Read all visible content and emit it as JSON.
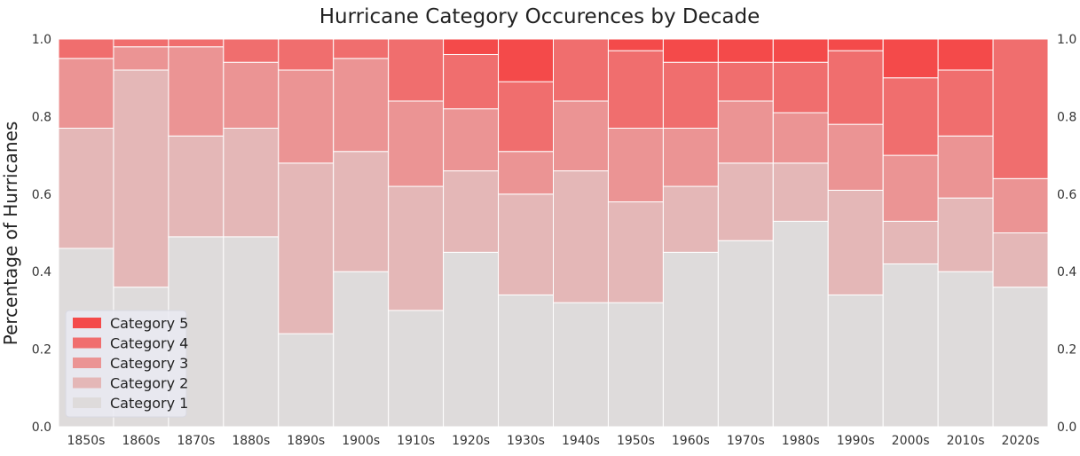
{
  "chart_data": {
    "type": "bar",
    "stacked": true,
    "normalized": true,
    "title": "Hurricane Category Occurences by Decade",
    "ylabel": "Percentage of Hurricanes",
    "xlabel": "",
    "ylim": [
      0,
      1
    ],
    "yticks": [
      "0.0",
      "0.2",
      "0.4",
      "0.6",
      "0.8",
      "1.0"
    ],
    "yticks_right": true,
    "grid": false,
    "legend_position": "bottom-left",
    "plot_background": "#eaeaf2",
    "categories": [
      "1850s",
      "1860s",
      "1870s",
      "1880s",
      "1890s",
      "1900s",
      "1910s",
      "1920s",
      "1930s",
      "1940s",
      "1950s",
      "1960s",
      "1970s",
      "1980s",
      "1990s",
      "2000s",
      "2010s",
      "2020s"
    ],
    "series": [
      {
        "name": "Category 1",
        "color": "#dedbdb",
        "values": [
          0.46,
          0.36,
          0.49,
          0.49,
          0.24,
          0.4,
          0.3,
          0.45,
          0.34,
          0.32,
          0.32,
          0.45,
          0.48,
          0.53,
          0.34,
          0.42,
          0.4,
          0.36
        ]
      },
      {
        "name": "Category 2",
        "color": "#e4b7b7",
        "values": [
          0.31,
          0.56,
          0.26,
          0.28,
          0.44,
          0.31,
          0.32,
          0.21,
          0.26,
          0.34,
          0.26,
          0.17,
          0.2,
          0.15,
          0.27,
          0.11,
          0.19,
          0.14
        ]
      },
      {
        "name": "Category 3",
        "color": "#eb9494",
        "values": [
          0.18,
          0.06,
          0.23,
          0.17,
          0.24,
          0.24,
          0.22,
          0.16,
          0.11,
          0.18,
          0.19,
          0.15,
          0.16,
          0.13,
          0.17,
          0.17,
          0.16,
          0.14
        ]
      },
      {
        "name": "Category 4",
        "color": "#f06e6e",
        "values": [
          0.05,
          0.02,
          0.02,
          0.06,
          0.08,
          0.05,
          0.16,
          0.14,
          0.18,
          0.16,
          0.2,
          0.17,
          0.1,
          0.13,
          0.19,
          0.2,
          0.17,
          0.36
        ]
      },
      {
        "name": "Category 5",
        "color": "#f44a4a",
        "values": [
          0.0,
          0.0,
          0.0,
          0.0,
          0.0,
          0.0,
          0.0,
          0.04,
          0.11,
          0.0,
          0.03,
          0.06,
          0.06,
          0.06,
          0.03,
          0.1,
          0.08,
          0.0
        ]
      }
    ]
  }
}
